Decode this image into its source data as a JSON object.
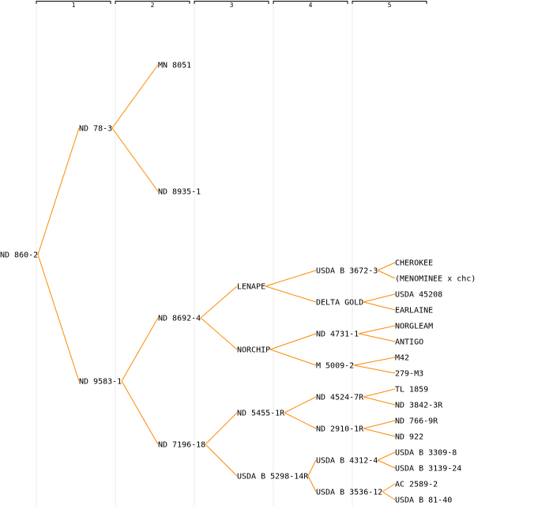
{
  "colors": {
    "edge": "#ff8800",
    "text": "#000000",
    "column_line": "#eeeeee",
    "background": "#ffffff"
  },
  "generations": [
    "1",
    "2",
    "3",
    "4",
    "5"
  ],
  "pedigree": {
    "name": "ND 860-2",
    "parents": [
      {
        "name": "ND 78-3",
        "parents": [
          {
            "name": "MN 8051"
          },
          {
            "name": "ND 8935-1"
          }
        ]
      },
      {
        "name": "ND 9583-1",
        "parents": [
          {
            "name": "ND 8692-4",
            "parents": [
              {
                "name": "LENAPE",
                "parents": [
                  {
                    "name": "USDA B 3672-3",
                    "parents": [
                      {
                        "name": "CHEROKEE"
                      },
                      {
                        "name": "(MENOMINEE x chc)"
                      }
                    ]
                  },
                  {
                    "name": "DELTA GOLD",
                    "parents": [
                      {
                        "name": "USDA 45208"
                      },
                      {
                        "name": "EARLAINE"
                      }
                    ]
                  }
                ]
              },
              {
                "name": "NORCHIP",
                "parents": [
                  {
                    "name": "ND 4731-1",
                    "parents": [
                      {
                        "name": "NORGLEAM"
                      },
                      {
                        "name": "ANTIGO"
                      }
                    ]
                  },
                  {
                    "name": "M 5009-2",
                    "parents": [
                      {
                        "name": "M42"
                      },
                      {
                        "name": "279-M3"
                      }
                    ]
                  }
                ]
              }
            ]
          },
          {
            "name": "ND 7196-18",
            "parents": [
              {
                "name": "ND 5455-1R",
                "parents": [
                  {
                    "name": "ND 4524-7R",
                    "parents": [
                      {
                        "name": "TL 1859"
                      },
                      {
                        "name": "ND 3842-3R"
                      }
                    ]
                  },
                  {
                    "name": "ND 2910-1R",
                    "parents": [
                      {
                        "name": "ND 766-9R"
                      },
                      {
                        "name": "ND 922"
                      }
                    ]
                  }
                ]
              },
              {
                "name": "USDA B 5298-14R",
                "parents": [
                  {
                    "name": "USDA B 4312-4",
                    "parents": [
                      {
                        "name": "USDA B 3309-8"
                      },
                      {
                        "name": "USDA B 3139-24"
                      }
                    ]
                  },
                  {
                    "name": "USDA B 3536-12",
                    "parents": [
                      {
                        "name": "AC 2589-2"
                      },
                      {
                        "name": "USDA B 81-40"
                      }
                    ]
                  }
                ]
              }
            ]
          }
        ]
      }
    ]
  }
}
